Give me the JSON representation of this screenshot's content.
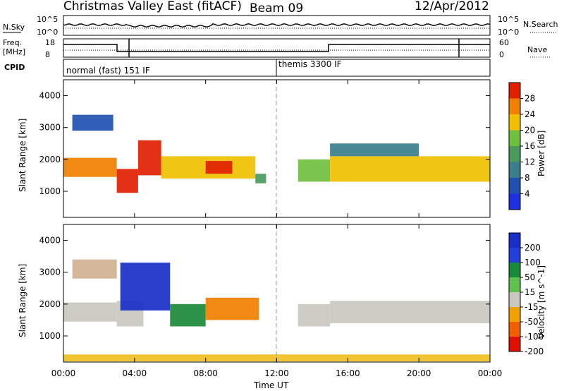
{
  "header": {
    "title": "Christmas Valley East (fitACF)",
    "beam": "Beam 09",
    "date": "12/Apr/2012"
  },
  "strip": {
    "nsky_label": "N.Sky",
    "nsky_ticks": [
      "10^5",
      "10^0"
    ],
    "nsearch_label": "N.Search",
    "nsearch_ticks": [
      "10^5",
      "10^0"
    ],
    "freq_label": "Freq.",
    "freq_unit": "[MHz]",
    "freq_ticks": [
      "18",
      "8"
    ],
    "nave_label": "Nave",
    "nave_ticks": [
      "60",
      "0"
    ],
    "cpid_label": "CPID",
    "cpid_modes": [
      {
        "name": "normal (fast) 151 IF",
        "start_h": 0,
        "end_h": 12
      },
      {
        "name": "themis 3300 IF",
        "start_h": 12,
        "end_h": 24
      }
    ]
  },
  "chart_data": [
    {
      "type": "heatmap",
      "name": "power",
      "ylabel": "Slant Range [km]",
      "yticks": [
        "1000",
        "2000",
        "3000",
        "4000"
      ],
      "ylim": [
        180,
        4500
      ],
      "xlim": [
        0,
        24
      ],
      "colorbar": {
        "label": "Power [dB]",
        "ticks": [
          "4",
          "8",
          "12",
          "16",
          "20",
          "24",
          "28"
        ],
        "colors": [
          "#2030e0",
          "#2050b0",
          "#3a7f8c",
          "#4a9a60",
          "#70c040",
          "#f0c000",
          "#f08000",
          "#e02000"
        ]
      },
      "regions": [
        {
          "t0": 0.0,
          "t1": 3.0,
          "r0": 1450,
          "r1": 2050,
          "level": 6
        },
        {
          "t0": 0.5,
          "t1": 2.8,
          "r0": 2900,
          "r1": 3400,
          "level": 1
        },
        {
          "t0": 3.0,
          "t1": 4.2,
          "r0": 950,
          "r1": 1700,
          "level": 7
        },
        {
          "t0": 4.2,
          "t1": 5.5,
          "r0": 1500,
          "r1": 2600,
          "level": 7
        },
        {
          "t0": 5.5,
          "t1": 10.8,
          "r0": 1400,
          "r1": 2100,
          "level": 5
        },
        {
          "t0": 8.0,
          "t1": 9.5,
          "r0": 1550,
          "r1": 1950,
          "level": 7
        },
        {
          "t0": 10.8,
          "t1": 11.4,
          "r0": 1250,
          "r1": 1550,
          "level": 3
        },
        {
          "t0": 13.2,
          "t1": 15.0,
          "r0": 1300,
          "r1": 2000,
          "level": 4
        },
        {
          "t0": 15.0,
          "t1": 24.0,
          "r0": 1300,
          "r1": 2100,
          "level": 5
        },
        {
          "t0": 15.0,
          "t1": 20.0,
          "r0": 2100,
          "r1": 2500,
          "level": 2
        }
      ]
    },
    {
      "type": "heatmap",
      "name": "velocity",
      "ylabel": "Slant Range [km]",
      "yticks": [
        "1000",
        "2000",
        "3000",
        "4000"
      ],
      "ylim": [
        180,
        4500
      ],
      "xlim": [
        0,
        24
      ],
      "xlabel": "Time UT",
      "xticks": [
        "00:00",
        "04:00",
        "08:00",
        "12:00",
        "16:00",
        "20:00",
        "00:00"
      ],
      "colorbar": {
        "label": "Velocity [m s^-1]",
        "ticks": [
          "200",
          "100",
          "50",
          "15",
          "-15",
          "-50",
          "-100",
          "-200"
        ],
        "colors": [
          "#1a2ec8",
          "#2040d8",
          "#1a8a3a",
          "#60c050",
          "#c8c8c0",
          "#f0a000",
          "#f06000",
          "#e01000"
        ]
      },
      "regions": [
        {
          "t0": 0.0,
          "t1": 3.0,
          "r0": 1450,
          "r1": 2050,
          "color": "#c8c8c0"
        },
        {
          "t0": 0.5,
          "t1": 3.0,
          "r0": 2800,
          "r1": 3400,
          "color": "#d0b090"
        },
        {
          "t0": 3.0,
          "t1": 4.5,
          "r0": 1300,
          "r1": 2100,
          "color": "#c8c8c0"
        },
        {
          "t0": 3.2,
          "t1": 6.0,
          "r0": 1800,
          "r1": 3300,
          "color": "#1a2ec8"
        },
        {
          "t0": 6.0,
          "t1": 8.0,
          "r0": 1300,
          "r1": 2000,
          "color": "#1a8a3a"
        },
        {
          "t0": 8.0,
          "t1": 11.0,
          "r0": 1500,
          "r1": 2200,
          "color": "#f08000"
        },
        {
          "t0": 13.2,
          "t1": 15.0,
          "r0": 1300,
          "r1": 2000,
          "color": "#c8c8c0"
        },
        {
          "t0": 15.0,
          "t1": 24.0,
          "r0": 1400,
          "r1": 2100,
          "color": "#c8c8c0"
        },
        {
          "t0": 0.0,
          "t1": 24.0,
          "r0": 200,
          "r1": 420,
          "color": "#f0c020"
        }
      ]
    }
  ]
}
